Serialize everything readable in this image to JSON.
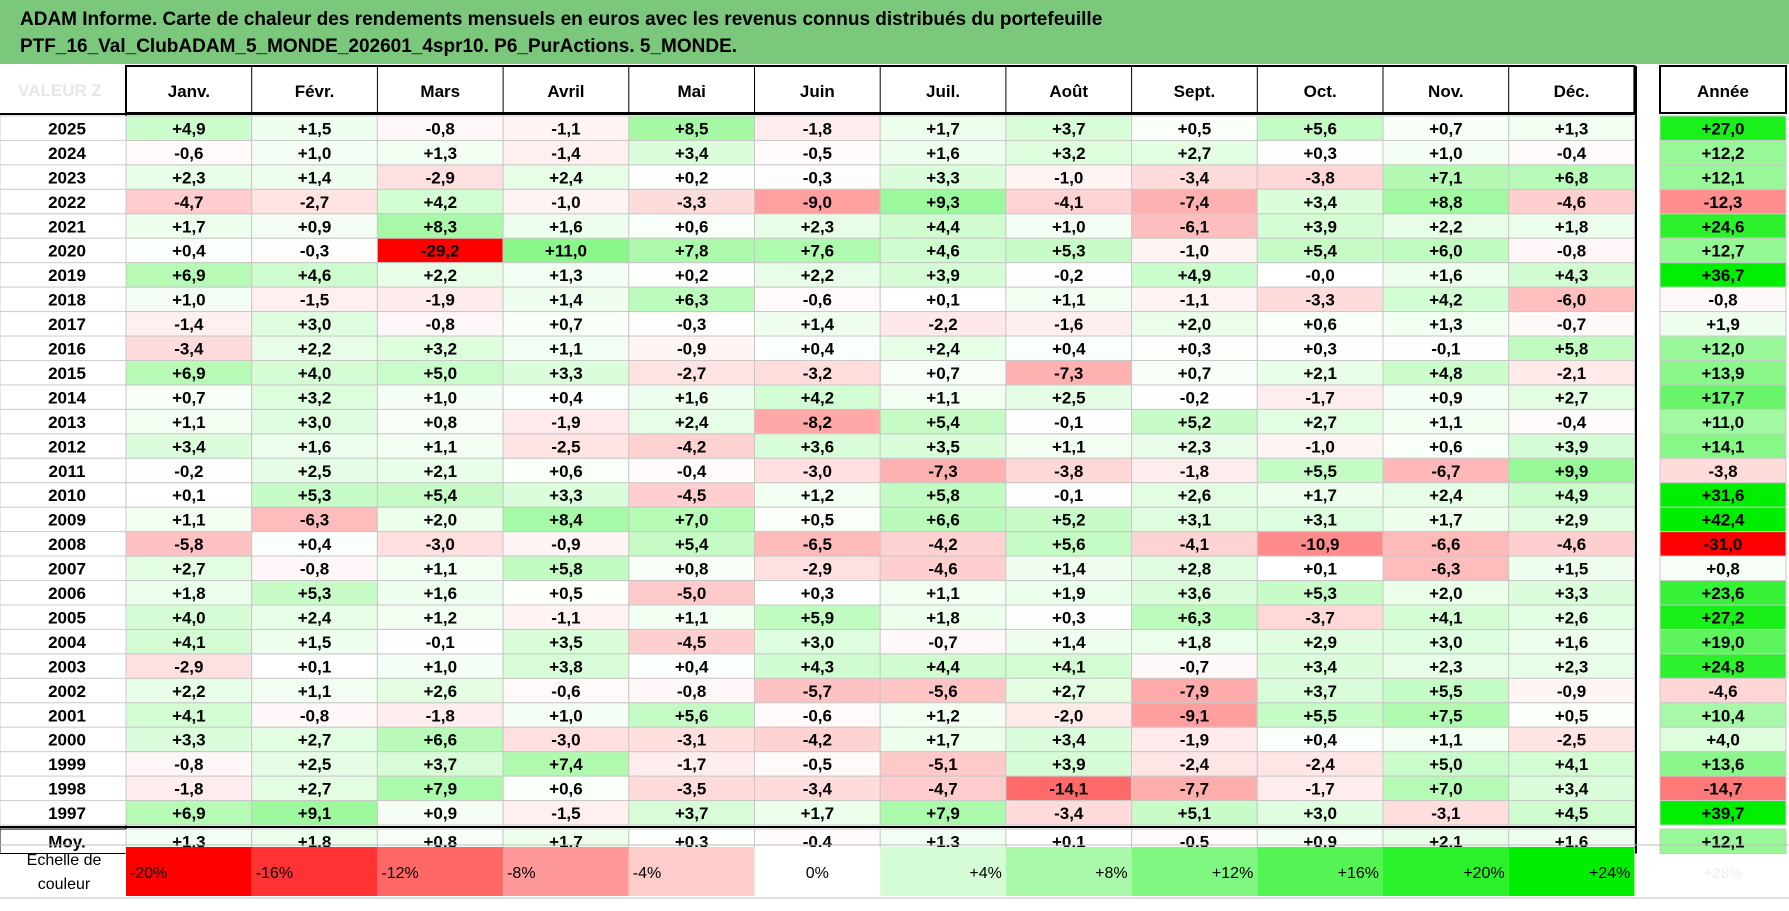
{
  "title": {
    "line1": "ADAM Informe. Carte de chaleur des rendements mensuels en euros avec les revenus connus distribués du portefeuille",
    "line2": "PTF_16_Val_ClubADAM_5_MONDE_202601_4spr10. P6_PurActions. 5_MONDE."
  },
  "corner_watermark": "VALEUR Z",
  "chart_data": {
    "type": "heatmap",
    "columns": [
      "Janv.",
      "Févr.",
      "Mars",
      "Avril",
      "Mai",
      "Juin",
      "Juil.",
      "Août",
      "Sept.",
      "Oct.",
      "Nov.",
      "Déc."
    ],
    "annual_header": "Année",
    "rows": [
      {
        "year": "2025",
        "values": [
          "+4,9",
          "+1,5",
          "-0,8",
          "-1,1",
          "+8,5",
          "-1,8",
          "+1,7",
          "+3,7",
          "+0,5",
          "+5,6",
          "+0,7",
          "+1,3"
        ],
        "annual": "+27,0"
      },
      {
        "year": "2024",
        "values": [
          "-0,6",
          "+1,0",
          "+1,3",
          "-1,4",
          "+3,4",
          "-0,5",
          "+1,6",
          "+3,2",
          "+2,7",
          "+0,3",
          "+1,0",
          "-0,4"
        ],
        "annual": "+12,2"
      },
      {
        "year": "2023",
        "values": [
          "+2,3",
          "+1,4",
          "-2,9",
          "+2,4",
          "+0,2",
          "-0,3",
          "+3,3",
          "-1,0",
          "-3,4",
          "-3,8",
          "+7,1",
          "+6,8"
        ],
        "annual": "+12,1"
      },
      {
        "year": "2022",
        "values": [
          "-4,7",
          "-2,7",
          "+4,2",
          "-1,0",
          "-3,3",
          "-9,0",
          "+9,3",
          "-4,1",
          "-7,4",
          "+3,4",
          "+8,8",
          "-4,6"
        ],
        "annual": "-12,3"
      },
      {
        "year": "2021",
        "values": [
          "+1,7",
          "+0,9",
          "+8,3",
          "+1,6",
          "+0,6",
          "+2,3",
          "+4,4",
          "+1,0",
          "-6,1",
          "+3,9",
          "+2,2",
          "+1,8"
        ],
        "annual": "+24,6"
      },
      {
        "year": "2020",
        "values": [
          "+0,4",
          "-0,3",
          "-29,2",
          "+11,0",
          "+7,8",
          "+7,6",
          "+4,6",
          "+5,3",
          "-1,0",
          "+5,4",
          "+6,0",
          "-0,8"
        ],
        "annual": "+12,7"
      },
      {
        "year": "2019",
        "values": [
          "+6,9",
          "+4,6",
          "+2,2",
          "+1,3",
          "+0,2",
          "+2,2",
          "+3,9",
          "-0,2",
          "+4,9",
          "-0,0",
          "+1,6",
          "+4,3"
        ],
        "annual": "+36,7"
      },
      {
        "year": "2018",
        "values": [
          "+1,0",
          "-1,5",
          "-1,9",
          "+1,4",
          "+6,3",
          "-0,6",
          "+0,1",
          "+1,1",
          "-1,1",
          "-3,3",
          "+4,2",
          "-6,0"
        ],
        "annual": "-0,8"
      },
      {
        "year": "2017",
        "values": [
          "-1,4",
          "+3,0",
          "-0,8",
          "+0,7",
          "-0,3",
          "+1,4",
          "-2,2",
          "-1,6",
          "+2,0",
          "+0,6",
          "+1,3",
          "-0,7"
        ],
        "annual": "+1,9"
      },
      {
        "year": "2016",
        "values": [
          "-3,4",
          "+2,2",
          "+3,2",
          "+1,1",
          "-0,9",
          "+0,4",
          "+2,4",
          "+0,4",
          "+0,3",
          "+0,3",
          "-0,1",
          "+5,8"
        ],
        "annual": "+12,0"
      },
      {
        "year": "2015",
        "values": [
          "+6,9",
          "+4,0",
          "+5,0",
          "+3,3",
          "-2,7",
          "-3,2",
          "+0,7",
          "-7,3",
          "+0,7",
          "+2,1",
          "+4,8",
          "-2,1"
        ],
        "annual": "+13,9"
      },
      {
        "year": "2014",
        "values": [
          "+0,7",
          "+3,2",
          "+1,0",
          "+0,4",
          "+1,6",
          "+4,2",
          "+1,1",
          "+2,5",
          "-0,2",
          "-1,7",
          "+0,9",
          "+2,7"
        ],
        "annual": "+17,7"
      },
      {
        "year": "2013",
        "values": [
          "+1,1",
          "+3,0",
          "+0,8",
          "-1,9",
          "+2,4",
          "-8,2",
          "+5,4",
          "-0,1",
          "+5,2",
          "+2,7",
          "+1,1",
          "-0,4"
        ],
        "annual": "+11,0"
      },
      {
        "year": "2012",
        "values": [
          "+3,4",
          "+1,6",
          "+1,1",
          "-2,5",
          "-4,2",
          "+3,6",
          "+3,5",
          "+1,1",
          "+2,3",
          "-1,0",
          "+0,6",
          "+3,9"
        ],
        "annual": "+14,1"
      },
      {
        "year": "2011",
        "values": [
          "-0,2",
          "+2,5",
          "+2,1",
          "+0,6",
          "-0,4",
          "-3,0",
          "-7,3",
          "-3,8",
          "-1,8",
          "+5,5",
          "-6,7",
          "+9,9"
        ],
        "annual": "-3,8"
      },
      {
        "year": "2010",
        "values": [
          "+0,1",
          "+5,3",
          "+5,4",
          "+3,3",
          "-4,5",
          "+1,2",
          "+5,8",
          "-0,1",
          "+2,6",
          "+1,7",
          "+2,4",
          "+4,9"
        ],
        "annual": "+31,6"
      },
      {
        "year": "2009",
        "values": [
          "+1,1",
          "-6,3",
          "+2,0",
          "+8,4",
          "+7,0",
          "+0,5",
          "+6,6",
          "+5,2",
          "+3,1",
          "+3,1",
          "+1,7",
          "+2,9"
        ],
        "annual": "+42,4"
      },
      {
        "year": "2008",
        "values": [
          "-5,8",
          "+0,4",
          "-3,0",
          "-0,9",
          "+5,4",
          "-6,5",
          "-4,2",
          "+5,6",
          "-4,1",
          "-10,9",
          "-6,6",
          "-4,6"
        ],
        "annual": "-31,0"
      },
      {
        "year": "2007",
        "values": [
          "+2,7",
          "-0,8",
          "+1,1",
          "+5,8",
          "+0,8",
          "-2,9",
          "-4,6",
          "+1,4",
          "+2,8",
          "+0,1",
          "-6,3",
          "+1,5"
        ],
        "annual": "+0,8"
      },
      {
        "year": "2006",
        "values": [
          "+1,8",
          "+5,3",
          "+1,6",
          "+0,5",
          "-5,0",
          "+0,3",
          "+1,1",
          "+1,9",
          "+3,6",
          "+5,3",
          "+2,0",
          "+3,3"
        ],
        "annual": "+23,6"
      },
      {
        "year": "2005",
        "values": [
          "+4,0",
          "+2,4",
          "+1,2",
          "-1,1",
          "+1,1",
          "+5,9",
          "+1,8",
          "+0,3",
          "+6,3",
          "-3,7",
          "+4,1",
          "+2,6"
        ],
        "annual": "+27,2"
      },
      {
        "year": "2004",
        "values": [
          "+4,1",
          "+1,5",
          "-0,1",
          "+3,5",
          "-4,5",
          "+3,0",
          "-0,7",
          "+1,4",
          "+1,8",
          "+2,9",
          "+3,0",
          "+1,6"
        ],
        "annual": "+19,0"
      },
      {
        "year": "2003",
        "values": [
          "-2,9",
          "+0,1",
          "+1,0",
          "+3,8",
          "+0,4",
          "+4,3",
          "+4,4",
          "+4,1",
          "-0,7",
          "+3,4",
          "+2,3",
          "+2,3"
        ],
        "annual": "+24,8"
      },
      {
        "year": "2002",
        "values": [
          "+2,2",
          "+1,1",
          "+2,6",
          "-0,6",
          "-0,8",
          "-5,7",
          "-5,6",
          "+2,7",
          "-7,9",
          "+3,7",
          "+5,5",
          "-0,9"
        ],
        "annual": "-4,6"
      },
      {
        "year": "2001",
        "values": [
          "+4,1",
          "-0,8",
          "-1,8",
          "+1,0",
          "+5,6",
          "-0,6",
          "+1,2",
          "-2,0",
          "-9,1",
          "+5,5",
          "+7,5",
          "+0,5"
        ],
        "annual": "+10,4"
      },
      {
        "year": "2000",
        "values": [
          "+3,3",
          "+2,7",
          "+6,6",
          "-3,0",
          "-3,1",
          "-4,2",
          "+1,7",
          "+3,4",
          "-1,9",
          "+0,4",
          "+1,1",
          "-2,5"
        ],
        "annual": "+4,0"
      },
      {
        "year": "1999",
        "values": [
          "-0,8",
          "+2,5",
          "+3,7",
          "+7,4",
          "-1,7",
          "-0,5",
          "-5,1",
          "+3,9",
          "-2,4",
          "-2,4",
          "+5,0",
          "+4,1"
        ],
        "annual": "+13,6"
      },
      {
        "year": "1998",
        "values": [
          "-1,8",
          "+2,7",
          "+7,9",
          "+0,6",
          "-3,5",
          "-3,4",
          "-4,7",
          "-14,1",
          "-7,7",
          "-1,7",
          "+7,0",
          "+3,4"
        ],
        "annual": "-14,7"
      },
      {
        "year": "1997",
        "values": [
          "+6,9",
          "+9,1",
          "+0,9",
          "-1,5",
          "+3,7",
          "+1,7",
          "+7,9",
          "-3,4",
          "+5,1",
          "+3,0",
          "-3,1",
          "+4,5"
        ],
        "annual": "+39,7"
      }
    ],
    "average": {
      "label": "Moy.",
      "values": [
        "+1,3",
        "+1,8",
        "+0,8",
        "+1,7",
        "+0,3",
        "-0,4",
        "+1,3",
        "+0,1",
        "-0,5",
        "+0,9",
        "+2,1",
        "+1,6"
      ],
      "annual": "+12,1"
    },
    "scale": {
      "label_line1": "Echelle de",
      "label_line2": "couleur",
      "items": [
        "-20%",
        "-16%",
        "-12%",
        "-8%",
        "-4%",
        "0%",
        "+4%",
        "+8%",
        "+12%",
        "+16%",
        "+20%",
        "+24%"
      ],
      "item_values": [
        -20,
        -16,
        -12,
        -8,
        -4,
        0,
        4,
        8,
        12,
        16,
        20,
        24
      ],
      "faded_tail": "+28%"
    },
    "colors": {
      "negative_max": "#ff0000",
      "neutral": "#ffffff",
      "positive_max": "#00ee00",
      "title_bg": "#7bc77b"
    }
  }
}
